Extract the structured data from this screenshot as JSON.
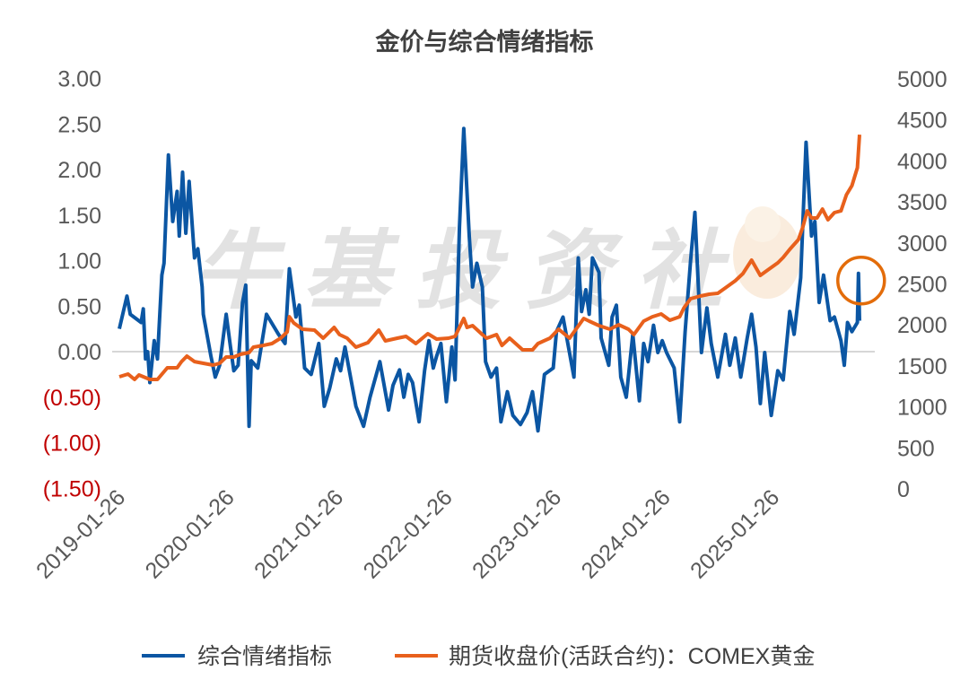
{
  "chart_data": {
    "type": "line",
    "title": "金价与综合情绪指标",
    "watermark": "牛基投资社",
    "x_unit": "years since 2019-01-26",
    "x_ticks": [
      {
        "t": 0,
        "label": "2019-01-26"
      },
      {
        "t": 1,
        "label": "2020-01-26"
      },
      {
        "t": 2,
        "label": "2021-01-26"
      },
      {
        "t": 3,
        "label": "2022-01-26"
      },
      {
        "t": 4,
        "label": "2023-01-26"
      },
      {
        "t": 5,
        "label": "2024-01-26"
      },
      {
        "t": 6,
        "label": "2025-01-26"
      }
    ],
    "y_left": {
      "range": [
        -1.5,
        3.0
      ],
      "ticks": [
        {
          "v": 3.0,
          "label": "3.00"
        },
        {
          "v": 2.5,
          "label": "2.50"
        },
        {
          "v": 2.0,
          "label": "2.00"
        },
        {
          "v": 1.5,
          "label": "1.50"
        },
        {
          "v": 1.0,
          "label": "1.00"
        },
        {
          "v": 0.5,
          "label": "0.50"
        },
        {
          "v": 0.0,
          "label": "0.00"
        },
        {
          "v": -0.5,
          "label": "(0.50)"
        },
        {
          "v": -1.0,
          "label": "(1.00)"
        },
        {
          "v": -1.5,
          "label": "(1.50)"
        }
      ]
    },
    "y_right": {
      "range": [
        0,
        5000
      ],
      "ticks": [
        {
          "v": 5000,
          "label": "5000"
        },
        {
          "v": 4500,
          "label": "4500"
        },
        {
          "v": 4000,
          "label": "4000"
        },
        {
          "v": 3500,
          "label": "3500"
        },
        {
          "v": 3000,
          "label": "3000"
        },
        {
          "v": 2500,
          "label": "2500"
        },
        {
          "v": 2000,
          "label": "2000"
        },
        {
          "v": 1500,
          "label": "1500"
        },
        {
          "v": 1000,
          "label": "1000"
        },
        {
          "v": 500,
          "label": "500"
        },
        {
          "v": 0,
          "label": "0"
        }
      ]
    },
    "legend_position": "bottom",
    "highlight": {
      "type": "circle",
      "t": 6.78,
      "axis": "left",
      "v": 0.86,
      "color": "#e36c0a"
    },
    "series": [
      {
        "name": "综合情绪指标",
        "axis": "left",
        "color": "#0b56a3",
        "points": [
          [
            0,
            0.25
          ],
          [
            0.07,
            0.61
          ],
          [
            0.1,
            0.41
          ],
          [
            0.2,
            0.32
          ],
          [
            0.22,
            0.47
          ],
          [
            0.24,
            -0.08
          ],
          [
            0.26,
            0
          ],
          [
            0.28,
            -0.34
          ],
          [
            0.32,
            0.12
          ],
          [
            0.35,
            -0.08
          ],
          [
            0.39,
            0.84
          ],
          [
            0.41,
            0.97
          ],
          [
            0.45,
            2.16
          ],
          [
            0.49,
            1.43
          ],
          [
            0.53,
            1.76
          ],
          [
            0.55,
            1.27
          ],
          [
            0.58,
            1.97
          ],
          [
            0.61,
            1.3
          ],
          [
            0.64,
            1.87
          ],
          [
            0.69,
            1.03
          ],
          [
            0.72,
            1.13
          ],
          [
            0.76,
            0.71
          ],
          [
            0.77,
            0.41
          ],
          [
            0.84,
            -0.05
          ],
          [
            0.88,
            -0.28
          ],
          [
            0.92,
            -0.15
          ],
          [
            0.98,
            0.41
          ],
          [
            1.02,
            0.05
          ],
          [
            1.05,
            -0.21
          ],
          [
            1.09,
            -0.15
          ],
          [
            1.13,
            0.54
          ],
          [
            1.16,
            0.73
          ],
          [
            1.19,
            -0.82
          ],
          [
            1.21,
            -0.1
          ],
          [
            1.27,
            -0.18
          ],
          [
            1.35,
            0.41
          ],
          [
            1.46,
            0.19
          ],
          [
            1.52,
            0.09
          ],
          [
            1.56,
            0.91
          ],
          [
            1.62,
            0.38
          ],
          [
            1.65,
            0.51
          ],
          [
            1.7,
            -0.18
          ],
          [
            1.76,
            -0.25
          ],
          [
            1.83,
            0.09
          ],
          [
            1.88,
            -0.6
          ],
          [
            1.93,
            -0.4
          ],
          [
            1.99,
            -0.08
          ],
          [
            2.03,
            -0.21
          ],
          [
            2.07,
            0.05
          ],
          [
            2.17,
            -0.6
          ],
          [
            2.24,
            -0.82
          ],
          [
            2.3,
            -0.5
          ],
          [
            2.39,
            -0.11
          ],
          [
            2.47,
            -0.64
          ],
          [
            2.51,
            -0.37
          ],
          [
            2.57,
            -0.2
          ],
          [
            2.61,
            -0.5
          ],
          [
            2.65,
            -0.25
          ],
          [
            2.69,
            -0.34
          ],
          [
            2.75,
            -0.77
          ],
          [
            2.8,
            -0.21
          ],
          [
            2.84,
            0.12
          ],
          [
            2.88,
            -0.18
          ],
          [
            2.91,
            -0.05
          ],
          [
            2.95,
            0.09
          ],
          [
            3.0,
            -0.55
          ],
          [
            3.05,
            0.05
          ],
          [
            3.08,
            -0.31
          ],
          [
            3.12,
            1.37
          ],
          [
            3.16,
            2.45
          ],
          [
            3.21,
            1.27
          ],
          [
            3.24,
            0.71
          ],
          [
            3.28,
            0.97
          ],
          [
            3.33,
            0.71
          ],
          [
            3.36,
            -0.11
          ],
          [
            3.41,
            -0.28
          ],
          [
            3.46,
            -0.18
          ],
          [
            3.5,
            -0.77
          ],
          [
            3.56,
            -0.44
          ],
          [
            3.61,
            -0.7
          ],
          [
            3.68,
            -0.8
          ],
          [
            3.74,
            -0.67
          ],
          [
            3.79,
            -0.44
          ],
          [
            3.84,
            -0.87
          ],
          [
            3.9,
            -0.25
          ],
          [
            3.98,
            -0.18
          ],
          [
            4.01,
            0.22
          ],
          [
            4.07,
            0.38
          ],
          [
            4.12,
            0.05
          ],
          [
            4.17,
            -0.28
          ],
          [
            4.21,
            1.03
          ],
          [
            4.24,
            0.44
          ],
          [
            4.28,
            0.68
          ],
          [
            4.31,
            0.41
          ],
          [
            4.34,
            1.03
          ],
          [
            4.4,
            0.87
          ],
          [
            4.42,
            0.15
          ],
          [
            4.49,
            -0.15
          ],
          [
            4.52,
            0.38
          ],
          [
            4.56,
            0.51
          ],
          [
            4.6,
            -0.28
          ],
          [
            4.65,
            -0.5
          ],
          [
            4.71,
            0.19
          ],
          [
            4.77,
            -0.54
          ],
          [
            4.81,
            0.09
          ],
          [
            4.85,
            -0.11
          ],
          [
            4.9,
            0.29
          ],
          [
            4.94,
            -0.01
          ],
          [
            4.98,
            0.12
          ],
          [
            5.02,
            -0.01
          ],
          [
            5.09,
            -0.18
          ],
          [
            5.14,
            -0.77
          ],
          [
            5.19,
            0.22
          ],
          [
            5.24,
            1.0
          ],
          [
            5.28,
            1.53
          ],
          [
            5.34,
            -0.01
          ],
          [
            5.39,
            0.48
          ],
          [
            5.43,
            0.09
          ],
          [
            5.49,
            -0.28
          ],
          [
            5.56,
            0.19
          ],
          [
            5.6,
            -0.15
          ],
          [
            5.65,
            0.15
          ],
          [
            5.7,
            -0.28
          ],
          [
            5.76,
            0.15
          ],
          [
            5.8,
            0.41
          ],
          [
            5.84,
            0.05
          ],
          [
            5.88,
            -0.57
          ],
          [
            5.92,
            -0.01
          ],
          [
            5.98,
            -0.7
          ],
          [
            6.04,
            -0.21
          ],
          [
            6.09,
            -0.31
          ],
          [
            6.15,
            0.44
          ],
          [
            6.19,
            0.19
          ],
          [
            6.25,
            0.81
          ],
          [
            6.3,
            2.3
          ],
          [
            6.35,
            1.27
          ],
          [
            6.38,
            1.43
          ],
          [
            6.42,
            0.54
          ],
          [
            6.46,
            0.84
          ],
          [
            6.52,
            0.34
          ],
          [
            6.56,
            0.38
          ],
          [
            6.62,
            0.12
          ],
          [
            6.65,
            -0.15
          ],
          [
            6.68,
            0.32
          ],
          [
            6.72,
            0.22
          ],
          [
            6.77,
            0.32
          ],
          [
            6.78,
            0.86
          ],
          [
            6.79,
            0.34
          ]
        ]
      },
      {
        "name": "期货收盘价(活跃合约)：COMEX黄金",
        "axis": "right",
        "color": "#e8601c",
        "points": [
          [
            0,
            1368
          ],
          [
            0.08,
            1400
          ],
          [
            0.14,
            1335
          ],
          [
            0.18,
            1389
          ],
          [
            0.28,
            1335
          ],
          [
            0.35,
            1335
          ],
          [
            0.44,
            1477
          ],
          [
            0.53,
            1477
          ],
          [
            0.57,
            1553
          ],
          [
            0.62,
            1619
          ],
          [
            0.69,
            1553
          ],
          [
            0.77,
            1532
          ],
          [
            0.86,
            1510
          ],
          [
            0.92,
            1532
          ],
          [
            0.98,
            1608
          ],
          [
            1.05,
            1608
          ],
          [
            1.11,
            1641
          ],
          [
            1.19,
            1663
          ],
          [
            1.23,
            1729
          ],
          [
            1.32,
            1750
          ],
          [
            1.4,
            1772
          ],
          [
            1.48,
            1838
          ],
          [
            1.54,
            1915
          ],
          [
            1.56,
            2100
          ],
          [
            1.6,
            2024
          ],
          [
            1.68,
            1947
          ],
          [
            1.79,
            1936
          ],
          [
            1.87,
            1838
          ],
          [
            1.97,
            1969
          ],
          [
            2.02,
            1882
          ],
          [
            2.09,
            1838
          ],
          [
            2.17,
            1729
          ],
          [
            2.28,
            1783
          ],
          [
            2.38,
            1936
          ],
          [
            2.44,
            1805
          ],
          [
            2.55,
            1838
          ],
          [
            2.63,
            1860
          ],
          [
            2.72,
            1772
          ],
          [
            2.83,
            1893
          ],
          [
            2.91,
            1827
          ],
          [
            3.02,
            1838
          ],
          [
            3.08,
            1860
          ],
          [
            3.16,
            2079
          ],
          [
            3.19,
            1969
          ],
          [
            3.24,
            1991
          ],
          [
            3.33,
            1882
          ],
          [
            3.37,
            1838
          ],
          [
            3.46,
            1882
          ],
          [
            3.51,
            1750
          ],
          [
            3.58,
            1838
          ],
          [
            3.7,
            1696
          ],
          [
            3.79,
            1696
          ],
          [
            3.84,
            1772
          ],
          [
            3.95,
            1838
          ],
          [
            4.03,
            1947
          ],
          [
            4.13,
            1838
          ],
          [
            4.26,
            2079
          ],
          [
            4.31,
            2046
          ],
          [
            4.4,
            1991
          ],
          [
            4.5,
            1947
          ],
          [
            4.58,
            2002
          ],
          [
            4.67,
            1947
          ],
          [
            4.72,
            1882
          ],
          [
            4.81,
            2046
          ],
          [
            4.89,
            2100
          ],
          [
            4.97,
            2133
          ],
          [
            5.05,
            2057
          ],
          [
            5.14,
            2100
          ],
          [
            5.18,
            2210
          ],
          [
            5.24,
            2319
          ],
          [
            5.33,
            2352
          ],
          [
            5.41,
            2374
          ],
          [
            5.49,
            2385
          ],
          [
            5.57,
            2462
          ],
          [
            5.65,
            2538
          ],
          [
            5.72,
            2626
          ],
          [
            5.8,
            2790
          ],
          [
            5.88,
            2604
          ],
          [
            5.96,
            2680
          ],
          [
            6.04,
            2757
          ],
          [
            6.09,
            2823
          ],
          [
            6.15,
            2921
          ],
          [
            6.23,
            3041
          ],
          [
            6.27,
            3194
          ],
          [
            6.31,
            3391
          ],
          [
            6.35,
            3304
          ],
          [
            6.4,
            3304
          ],
          [
            6.45,
            3413
          ],
          [
            6.5,
            3282
          ],
          [
            6.56,
            3370
          ],
          [
            6.62,
            3391
          ],
          [
            6.67,
            3588
          ],
          [
            6.72,
            3698
          ],
          [
            6.77,
            3917
          ],
          [
            6.79,
            4321
          ]
        ]
      }
    ]
  }
}
